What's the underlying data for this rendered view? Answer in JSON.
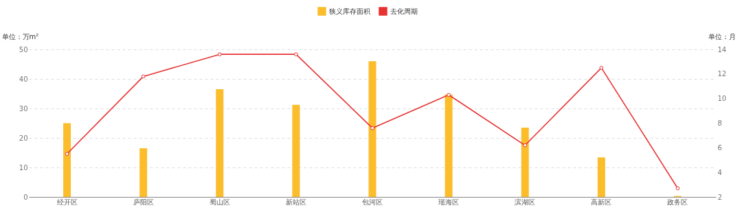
{
  "chart_data": {
    "type": "bar",
    "categories": [
      "经开区",
      "庐阳区",
      "蜀山区",
      "新站区",
      "包河区",
      "瑶海区",
      "滨湖区",
      "高新区",
      "政务区"
    ],
    "ylabel": "单位：万m²",
    "y2label": "单位：月",
    "series": [
      {
        "name": "狭义库存面积",
        "color": "#fbbd2b",
        "values": [
          25,
          16.5,
          36.5,
          31.2,
          46,
          34.7,
          23.5,
          13.4,
          0.3
        ]
      },
      {
        "name": "去化周期",
        "type": "line",
        "axis": "y2",
        "color": "#e83232",
        "marker": "circle",
        "line_style": "solid",
        "values": [
          5.5,
          11.8,
          13.6,
          13.6,
          7.6,
          10.3,
          6.2,
          12.5,
          2.7
        ]
      }
    ],
    "ylim": [
      0,
      50
    ],
    "yticks": [
      0,
      10,
      20,
      30,
      40,
      50
    ],
    "y2lim": [
      2,
      14
    ],
    "y2ticks": [
      2,
      4,
      6,
      8,
      10,
      12,
      14
    ],
    "grid": "y",
    "legend": "top"
  }
}
